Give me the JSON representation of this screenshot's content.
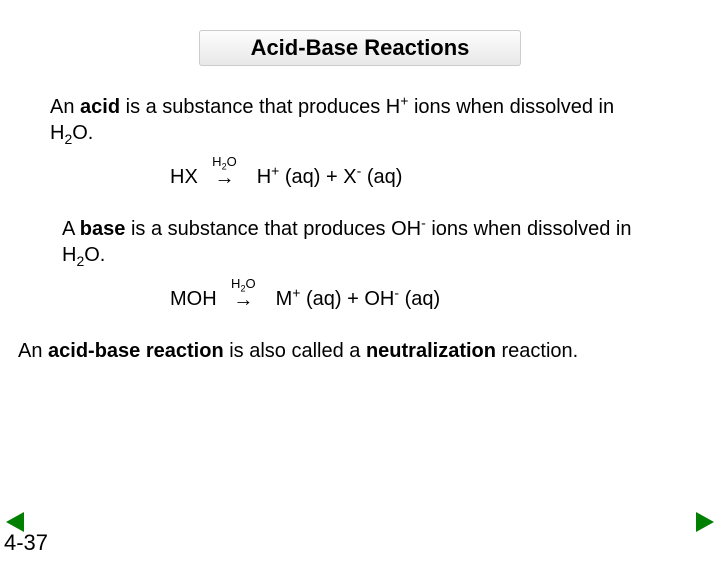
{
  "title": "Acid-Base Reactions",
  "acid": {
    "pre": "An ",
    "bold": "acid",
    "post1": " is a substance that produces H",
    "sup1": "+",
    "post2": " ions when dissolved in H",
    "sub2": "2",
    "post3": "O."
  },
  "eq1": {
    "lhs": "HX",
    "over_pre": "H",
    "over_sub": "2",
    "over_post": "O",
    "arrow": "→",
    "r1a": "H",
    "r1sup": "+",
    "r1b": " (aq) + X",
    "r2sup": "-",
    "r2b": " (aq)"
  },
  "base": {
    "pre": "A ",
    "bold": "base",
    "post1": " is a substance that produces OH",
    "sup1": "-",
    "post2": " ions when dissolved in H",
    "sub2": "2",
    "post3": "O."
  },
  "eq2": {
    "lhs": "MOH",
    "over_pre": "H",
    "over_sub": "2",
    "over_post": "O",
    "arrow": "→",
    "r1a": "M",
    "r1sup": "+",
    "r1b": " (aq) + OH",
    "r2sup": "-",
    "r2b": " (aq)"
  },
  "neutral": {
    "pre": "An ",
    "bold1": "acid-base reaction",
    "mid": " is also called a ",
    "bold2": "neutralization",
    "post": " reaction."
  },
  "page": "4-37"
}
